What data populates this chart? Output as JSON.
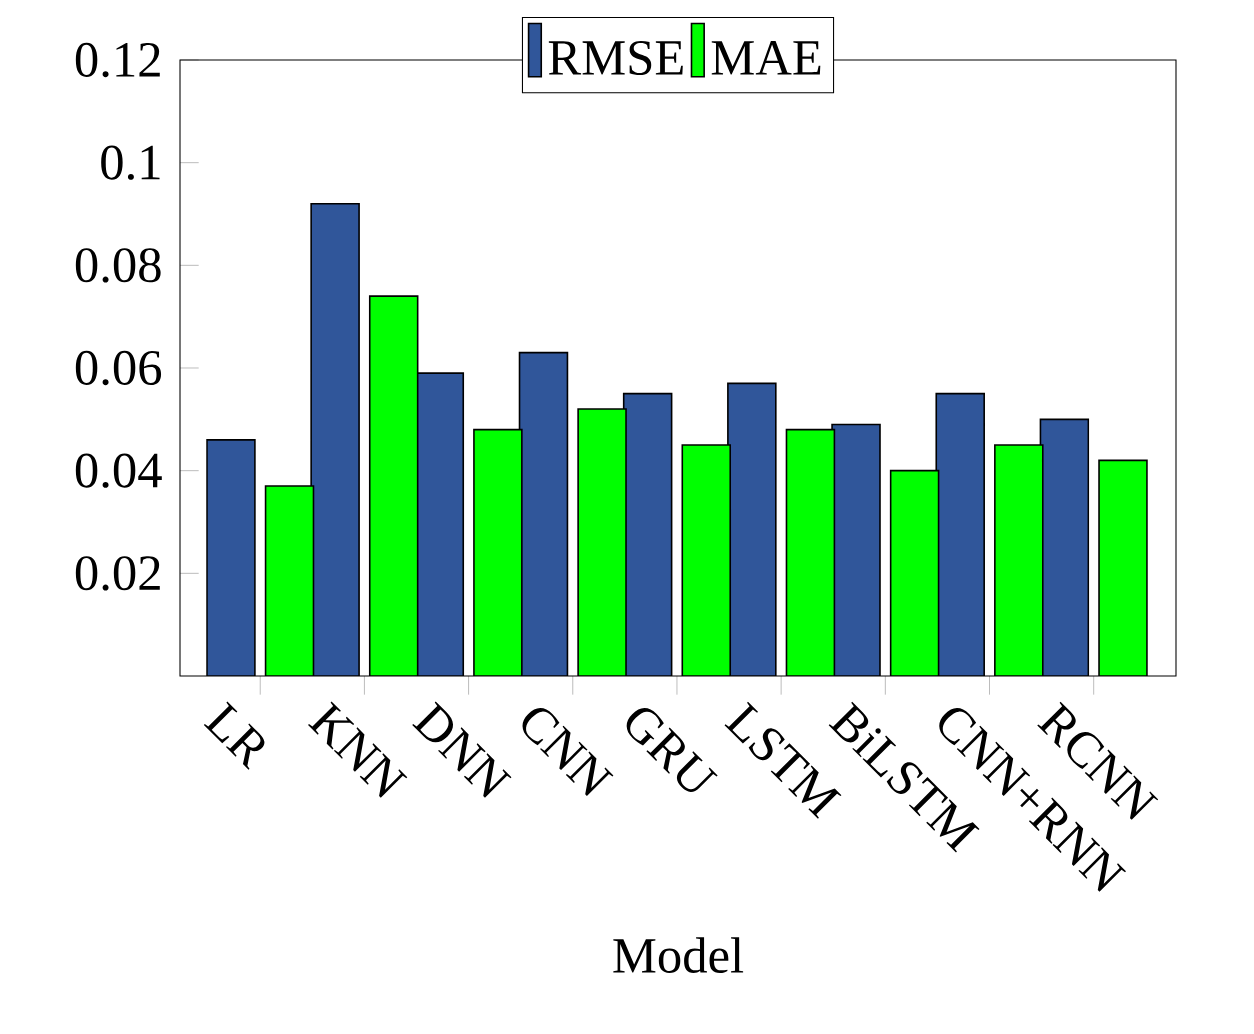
{
  "chart_data": {
    "type": "bar",
    "xlabel": "Model",
    "categories": [
      "LR",
      "KNN",
      "DNN",
      "CNN",
      "GRU",
      "LSTM",
      "BiLSTM",
      "CNN+RNN",
      "RCNN"
    ],
    "series": [
      {
        "name": "RMSE",
        "color": "#30569a",
        "values": [
          0.046,
          0.092,
          0.059,
          0.063,
          0.055,
          0.057,
          0.049,
          0.055,
          0.05
        ]
      },
      {
        "name": "MAE",
        "color": "#00ff00",
        "values": [
          0.037,
          0.074,
          0.048,
          0.052,
          0.045,
          0.048,
          0.04,
          0.045,
          0.042
        ]
      }
    ],
    "ylim": [
      0,
      0.12
    ],
    "yticks": [
      0.02,
      0.04,
      0.06,
      0.08,
      0.1,
      0.12
    ],
    "legend": "top"
  }
}
